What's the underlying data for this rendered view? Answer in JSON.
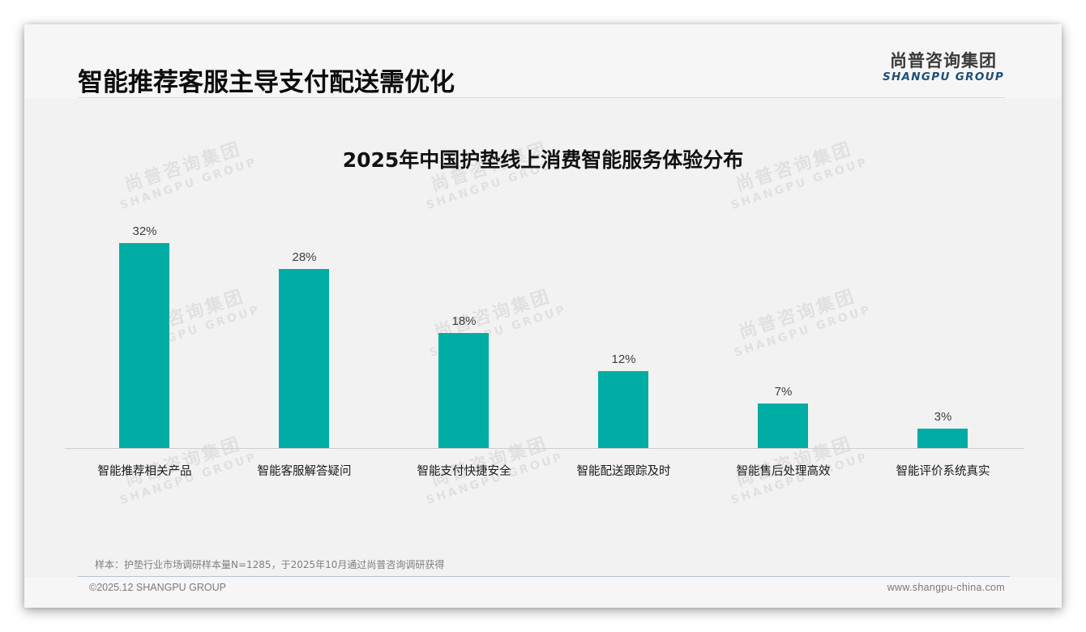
{
  "header": {
    "title": "智能推荐客服主导支付配送需优化",
    "logo_cn": "尚普咨询集团",
    "logo_en": "SHANGPU GROUP"
  },
  "watermark": {
    "cn": "尚普咨询集团",
    "en": "SHANGPU GROUP"
  },
  "colors": {
    "bar": "#00ada4",
    "logo_en": "#1f4e79",
    "title": "#0d0d0d"
  },
  "chart_data": {
    "type": "bar",
    "title": "2025年中国护垫线上消费智能服务体验分布",
    "xlabel": "",
    "ylabel": "",
    "ylim": [
      0,
      35
    ],
    "grid": false,
    "legend": null,
    "categories": [
      "智能推荐相关产品",
      "智能客服解答疑问",
      "智能支付快捷安全",
      "智能配送跟踪及时",
      "智能售后处理高效",
      "智能评价系统真实"
    ],
    "values": [
      32,
      28,
      18,
      12,
      7,
      3
    ],
    "value_labels": [
      "32%",
      "28%",
      "18%",
      "12%",
      "7%",
      "3%"
    ],
    "unit": "%"
  },
  "footer": {
    "note": "样本：护垫行业市场调研样本量N=1285，于2025年10月通过尚普咨询调研获得",
    "copyright": "©2025.12 SHANGPU GROUP",
    "website": "www.shangpu-china.com"
  }
}
